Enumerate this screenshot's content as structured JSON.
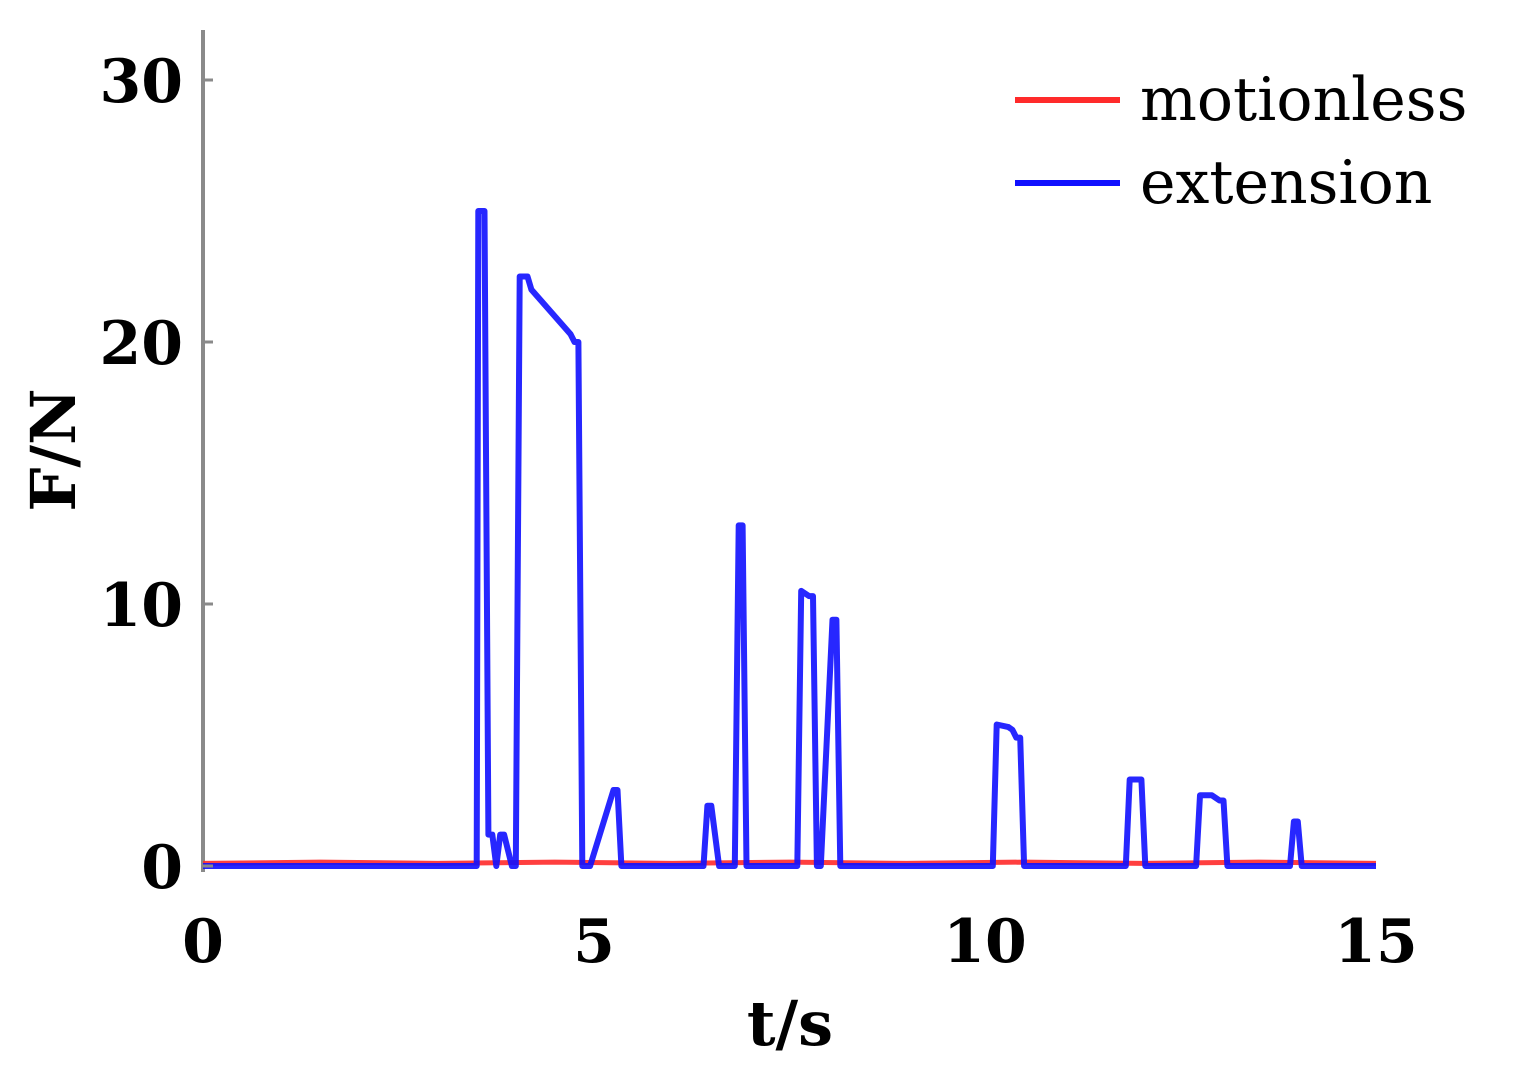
{
  "chart_data": {
    "type": "line",
    "xlabel": "t/s",
    "ylabel": "F/N",
    "xlim": [
      0,
      15
    ],
    "ylim": [
      0,
      30
    ],
    "xticks": [
      0,
      5,
      10,
      15
    ],
    "yticks": [
      0,
      10,
      20,
      30
    ],
    "grid": false,
    "legend_position": "top-right",
    "series": [
      {
        "name": "motionless",
        "color": "#ff2a2a",
        "x": [
          0,
          1.5,
          3.0,
          4.5,
          6.0,
          7.5,
          9.0,
          10.5,
          12.0,
          13.5,
          15
        ],
        "y": [
          0.1,
          0.15,
          0.1,
          0.15,
          0.1,
          0.15,
          0.1,
          0.15,
          0.1,
          0.15,
          0.1
        ]
      },
      {
        "name": "extension",
        "color": "#1010ff",
        "x": [
          0,
          3.5,
          3.52,
          3.6,
          3.65,
          3.7,
          3.75,
          3.8,
          3.85,
          3.95,
          4.0,
          4.05,
          4.1,
          4.15,
          4.2,
          4.7,
          4.75,
          4.8,
          4.85,
          4.9,
          4.95,
          5.25,
          5.3,
          5.35,
          5.45,
          6.4,
          6.45,
          6.5,
          6.6,
          6.8,
          6.85,
          6.9,
          6.95,
          7.6,
          7.65,
          7.75,
          7.8,
          7.85,
          7.9,
          8.05,
          8.1,
          8.15,
          8.2,
          10.1,
          10.15,
          10.3,
          10.35,
          10.4,
          10.45,
          10.5,
          10.55,
          11.8,
          11.85,
          12.0,
          12.05,
          12.7,
          12.75,
          12.9,
          13.0,
          13.05,
          13.1,
          13.9,
          13.95,
          14.0,
          14.05,
          15.0
        ],
        "y": [
          0,
          0,
          25,
          25,
          1.2,
          1.2,
          0,
          1.2,
          1.2,
          0,
          0,
          22.5,
          22.5,
          22.5,
          22.0,
          20.3,
          20.0,
          20.0,
          0,
          0,
          0,
          2.9,
          2.9,
          0,
          0,
          0,
          2.3,
          2.3,
          0,
          0,
          13,
          13,
          0,
          0,
          10.5,
          10.3,
          10.3,
          0,
          0,
          9.4,
          9.4,
          0,
          0,
          0,
          5.4,
          5.3,
          5.2,
          4.9,
          4.9,
          0,
          0,
          0,
          3.3,
          3.3,
          0,
          0,
          2.7,
          2.7,
          2.5,
          2.5,
          0,
          0,
          1.7,
          1.7,
          0,
          0
        ]
      }
    ]
  }
}
